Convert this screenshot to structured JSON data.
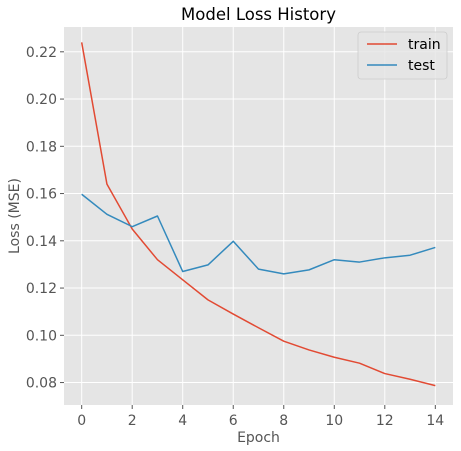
{
  "chart_data": {
    "type": "line",
    "title": "Model Loss History",
    "xlabel": "Epoch",
    "ylabel": "Loss (MSE)",
    "xlim": [
      -0.7,
      14.7
    ],
    "ylim": [
      0.0705,
      0.2305
    ],
    "xticks": [
      0,
      2,
      4,
      6,
      8,
      10,
      12,
      14
    ],
    "xtick_labels": [
      "0",
      "2",
      "4",
      "6",
      "8",
      "10",
      "12",
      "14"
    ],
    "yticks": [
      0.08,
      0.1,
      0.12,
      0.14,
      0.16,
      0.18,
      0.2,
      0.22
    ],
    "ytick_labels": [
      "0.08",
      "0.10",
      "0.12",
      "0.14",
      "0.16",
      "0.18",
      "0.20",
      "0.22"
    ],
    "grid": true,
    "legend_position": "top-right",
    "x": [
      0,
      1,
      2,
      3,
      4,
      5,
      6,
      7,
      8,
      9,
      10,
      11,
      12,
      13,
      14
    ],
    "series": [
      {
        "name": "train",
        "color": "#E24A33",
        "values": [
          0.224,
          0.164,
          0.145,
          0.132,
          0.1235,
          0.115,
          0.109,
          0.1032,
          0.0975,
          0.0938,
          0.0907,
          0.0882,
          0.0838,
          0.0814,
          0.0787
        ]
      },
      {
        "name": "test",
        "color": "#348ABD",
        "values": [
          0.1597,
          0.1512,
          0.146,
          0.1505,
          0.127,
          0.1298,
          0.1398,
          0.128,
          0.126,
          0.1277,
          0.132,
          0.131,
          0.1328,
          0.1339,
          0.1372
        ]
      }
    ]
  },
  "colors": {
    "plot_background": "#E5E5E5",
    "grid": "#FFFFFF"
  }
}
